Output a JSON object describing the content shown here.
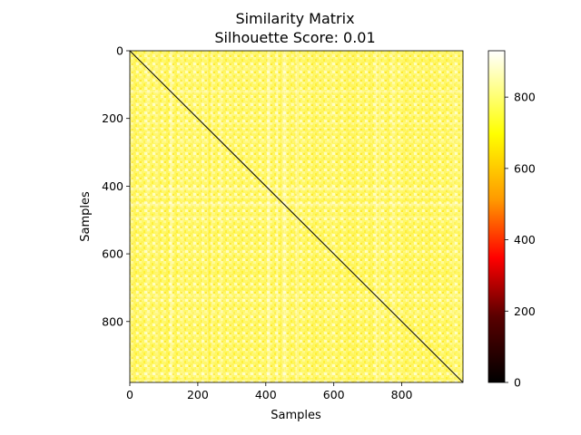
{
  "chart_data": {
    "type": "heatmap",
    "title": "Similarity Matrix",
    "subtitle": "Silhouette Score: 0.01",
    "xlabel": "Samples",
    "ylabel": "Samples",
    "n_samples": 980,
    "x_ticks": [
      0,
      200,
      400,
      600,
      800
    ],
    "y_ticks": [
      0,
      200,
      400,
      600,
      800
    ],
    "colormap": "hot",
    "colorbar": {
      "range": [
        0,
        930
      ],
      "ticks": [
        0,
        200,
        400,
        600,
        800
      ]
    },
    "diagonal_value": 0,
    "off_diagonal_typical": 860,
    "colors": {
      "cmap_stops": [
        "#000000",
        "#b00000",
        "#ff0000",
        "#ff8800",
        "#ffff00",
        "#ffffff"
      ]
    }
  }
}
